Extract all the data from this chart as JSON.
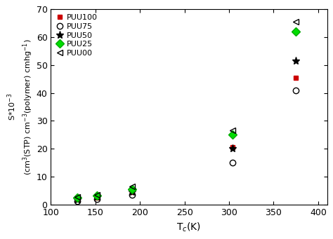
{
  "xlabel": "T$_c$(K)",
  "ylabel_top": "S*10$^{-3}$",
  "ylabel_bottom": "(cm$^3$(STP) cm$^{-3}$(polymer) cmhg$^{-1}$)",
  "xlim": [
    100,
    410
  ],
  "ylim": [
    0,
    70
  ],
  "xticks": [
    100,
    150,
    200,
    250,
    300,
    350,
    400
  ],
  "yticks": [
    0,
    10,
    20,
    30,
    40,
    50,
    60,
    70
  ],
  "series": {
    "PUU100": {
      "Tc": [
        130,
        152,
        191,
        304,
        375
      ],
      "S": [
        2.0,
        2.5,
        4.5,
        20.5,
        45.5
      ],
      "marker": "s",
      "markerfacecolor": "#cc0000",
      "markeredgecolor": "#cc0000",
      "markersize": 5,
      "label": "PUU100"
    },
    "PUU75": {
      "Tc": [
        130,
        152,
        191,
        304,
        375
      ],
      "S": [
        1.2,
        2.0,
        3.5,
        15.0,
        41.0
      ],
      "marker": "o",
      "markerfacecolor": "none",
      "markeredgecolor": "#000000",
      "markersize": 6,
      "label": "PUU75"
    },
    "PUU50": {
      "Tc": [
        130,
        152,
        191,
        304,
        375
      ],
      "S": [
        1.8,
        2.8,
        4.5,
        20.0,
        51.5
      ],
      "marker": "*",
      "markerfacecolor": "#000000",
      "markeredgecolor": "#000000",
      "markersize": 8,
      "label": "PUU50"
    },
    "PUU25": {
      "Tc": [
        130,
        152,
        191,
        304,
        375
      ],
      "S": [
        2.5,
        3.2,
        5.5,
        25.0,
        62.0
      ],
      "marker": "D",
      "markerfacecolor": "#00dd00",
      "markeredgecolor": "#00aa00",
      "markersize": 6,
      "label": "PUU25"
    },
    "PUU00": {
      "Tc": [
        130,
        152,
        191,
        304,
        375
      ],
      "S": [
        2.8,
        3.5,
        6.5,
        26.5,
        65.5
      ],
      "marker": "<",
      "markerfacecolor": "none",
      "markeredgecolor": "#000000",
      "markersize": 6,
      "label": "PUU00"
    }
  },
  "series_order": [
    "PUU100",
    "PUU75",
    "PUU50",
    "PUU25",
    "PUU00"
  ],
  "legend_fontsize": 8,
  "tick_labelsize": 9,
  "xlabel_fontsize": 10,
  "ylabel_fontsize": 8
}
